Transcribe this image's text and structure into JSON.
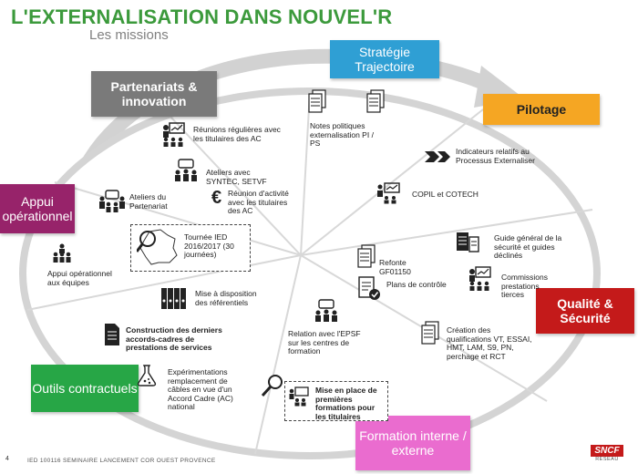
{
  "header": {
    "title": "L'EXTERNALISATION DANS NOUVEL'R",
    "subtitle": "Les missions"
  },
  "colors": {
    "title_green": "#3c9a3c",
    "strategie": "#2f9fd4",
    "pilotage": "#f5a623",
    "qualite": "#c41a1a",
    "formation": "#ea6ccf",
    "outils": "#27a646",
    "appui": "#97236a",
    "partenariats": "#7a7a7a"
  },
  "categories": {
    "partenariats": "Partenariats & innovation",
    "strategie": "Stratégie Trajectoire",
    "pilotage": "Pilotage",
    "appui": "Appui opérationnel",
    "qualite": "Qualité & Sécurité",
    "outils": "Outils contractuels",
    "formation": "Formation interne / externe"
  },
  "items": {
    "reunions": "Réunions régulières avec les titulaires des AC",
    "ateliers_avec": "Ateliers avec SYNTEC, SETVF",
    "reunion_activite": "Réunion d'activité avec les titulaires des AC",
    "ateliers_partenariat": "Ateliers du Partenariat",
    "tournee": "Tournée IED 2016/2017 (30 journées)",
    "appui_equipes": "Appui opérationnel aux équipes",
    "notes_politiques": "Notes politiques externalisation PI / PS",
    "indicateurs": "Indicateurs relatifs au Processus Externaliser",
    "copil": "COPIL et COTECH",
    "guide": "Guide général de la sécurité et guides déclinés",
    "refonte": "Refonte GF01150",
    "plans_controle": "Plans de contrôle",
    "commissions": "Commissions prestations tierces",
    "creation_qualif": "Création des qualifications VT, ESSAI, HMT, LAM, S9, PN, perchage et RCT",
    "relation_epsf": "Relation avec l'EPSF sur les centres de formation",
    "mise_place": "Mise en place de premières formations pour les titulaires",
    "mise_disposition": "Mise à disposition des référentiels",
    "construction": "Construction des derniers accords-cadres de prestations de services",
    "experimentations": "Expérimentations remplacement de câbles en vue d'un Accord Cadre (AC) national"
  },
  "footer": {
    "page": "4",
    "text": "IED 100116 SEMINAIRE LANCEMENT COR OUEST PROVENCE"
  },
  "logo": {
    "brand": "SNCF",
    "sub": "RÉSEAU"
  },
  "icons": [
    "people-meeting-icon",
    "document-stack-icon",
    "euro-icon",
    "arrows-icon",
    "france-map-icon",
    "magnifier-icon",
    "binders-icon",
    "document-icon",
    "flask-icon",
    "checklist-icon"
  ]
}
